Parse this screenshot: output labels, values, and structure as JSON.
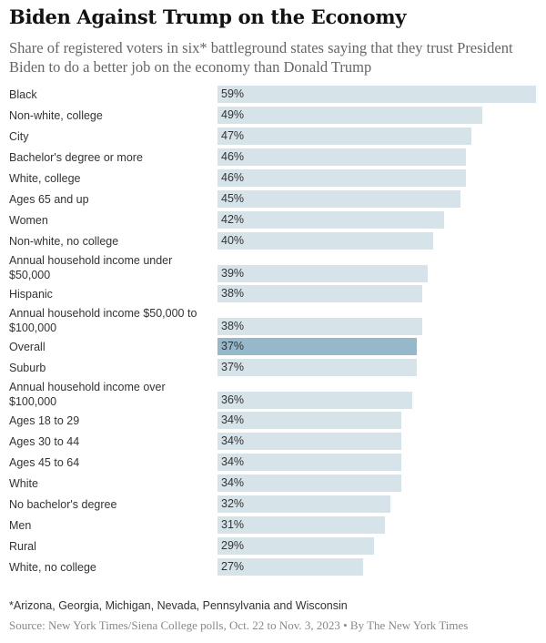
{
  "chart_data": {
    "type": "bar",
    "orientation": "horizontal",
    "title": "Biden Against Trump on the Economy",
    "subtitle": "Share of registered voters in six* battleground states saying that they trust President Biden to do a better job on the economy than Donald Trump",
    "value_suffix": "%",
    "xlim": [
      0,
      59
    ],
    "grid": false,
    "colors": {
      "bar": "#d6e3e8",
      "highlight": "#95b9ca"
    },
    "categories": [
      "Black",
      "Non-white, college",
      "City",
      "Bachelor's degree or more",
      "White, college",
      "Ages 65 and up",
      "Women",
      "Non-white, no college",
      "Annual household income under $50,000",
      "Hispanic",
      "Annual household income $50,000 to $100,000",
      "Overall",
      "Suburb",
      "Annual household income over $100,000",
      "Ages 18 to 29",
      "Ages 30 to 44",
      "Ages 45 to 64",
      "White",
      "No bachelor's degree",
      "Men",
      "Rural",
      "White, no college"
    ],
    "values": [
      59,
      49,
      47,
      46,
      46,
      45,
      42,
      40,
      39,
      38,
      38,
      37,
      37,
      36,
      34,
      34,
      34,
      34,
      32,
      31,
      29,
      27
    ],
    "value_labels": [
      "59%",
      "49%",
      "47%",
      "46%",
      "46%",
      "45%",
      "42%",
      "40%",
      "39%",
      "38%",
      "38%",
      "37%",
      "37%",
      "36%",
      "34%",
      "34%",
      "34%",
      "34%",
      "32%",
      "31%",
      "29%",
      "27%"
    ],
    "highlighted": [
      "Overall"
    ],
    "footnote": "*Arizona, Georgia, Michigan, Nevada, Pennsylvania and Wisconsin",
    "source": "Source: New York Times/Siena College polls, Oct. 22 to Nov. 3, 2023 • By The New York Times"
  }
}
